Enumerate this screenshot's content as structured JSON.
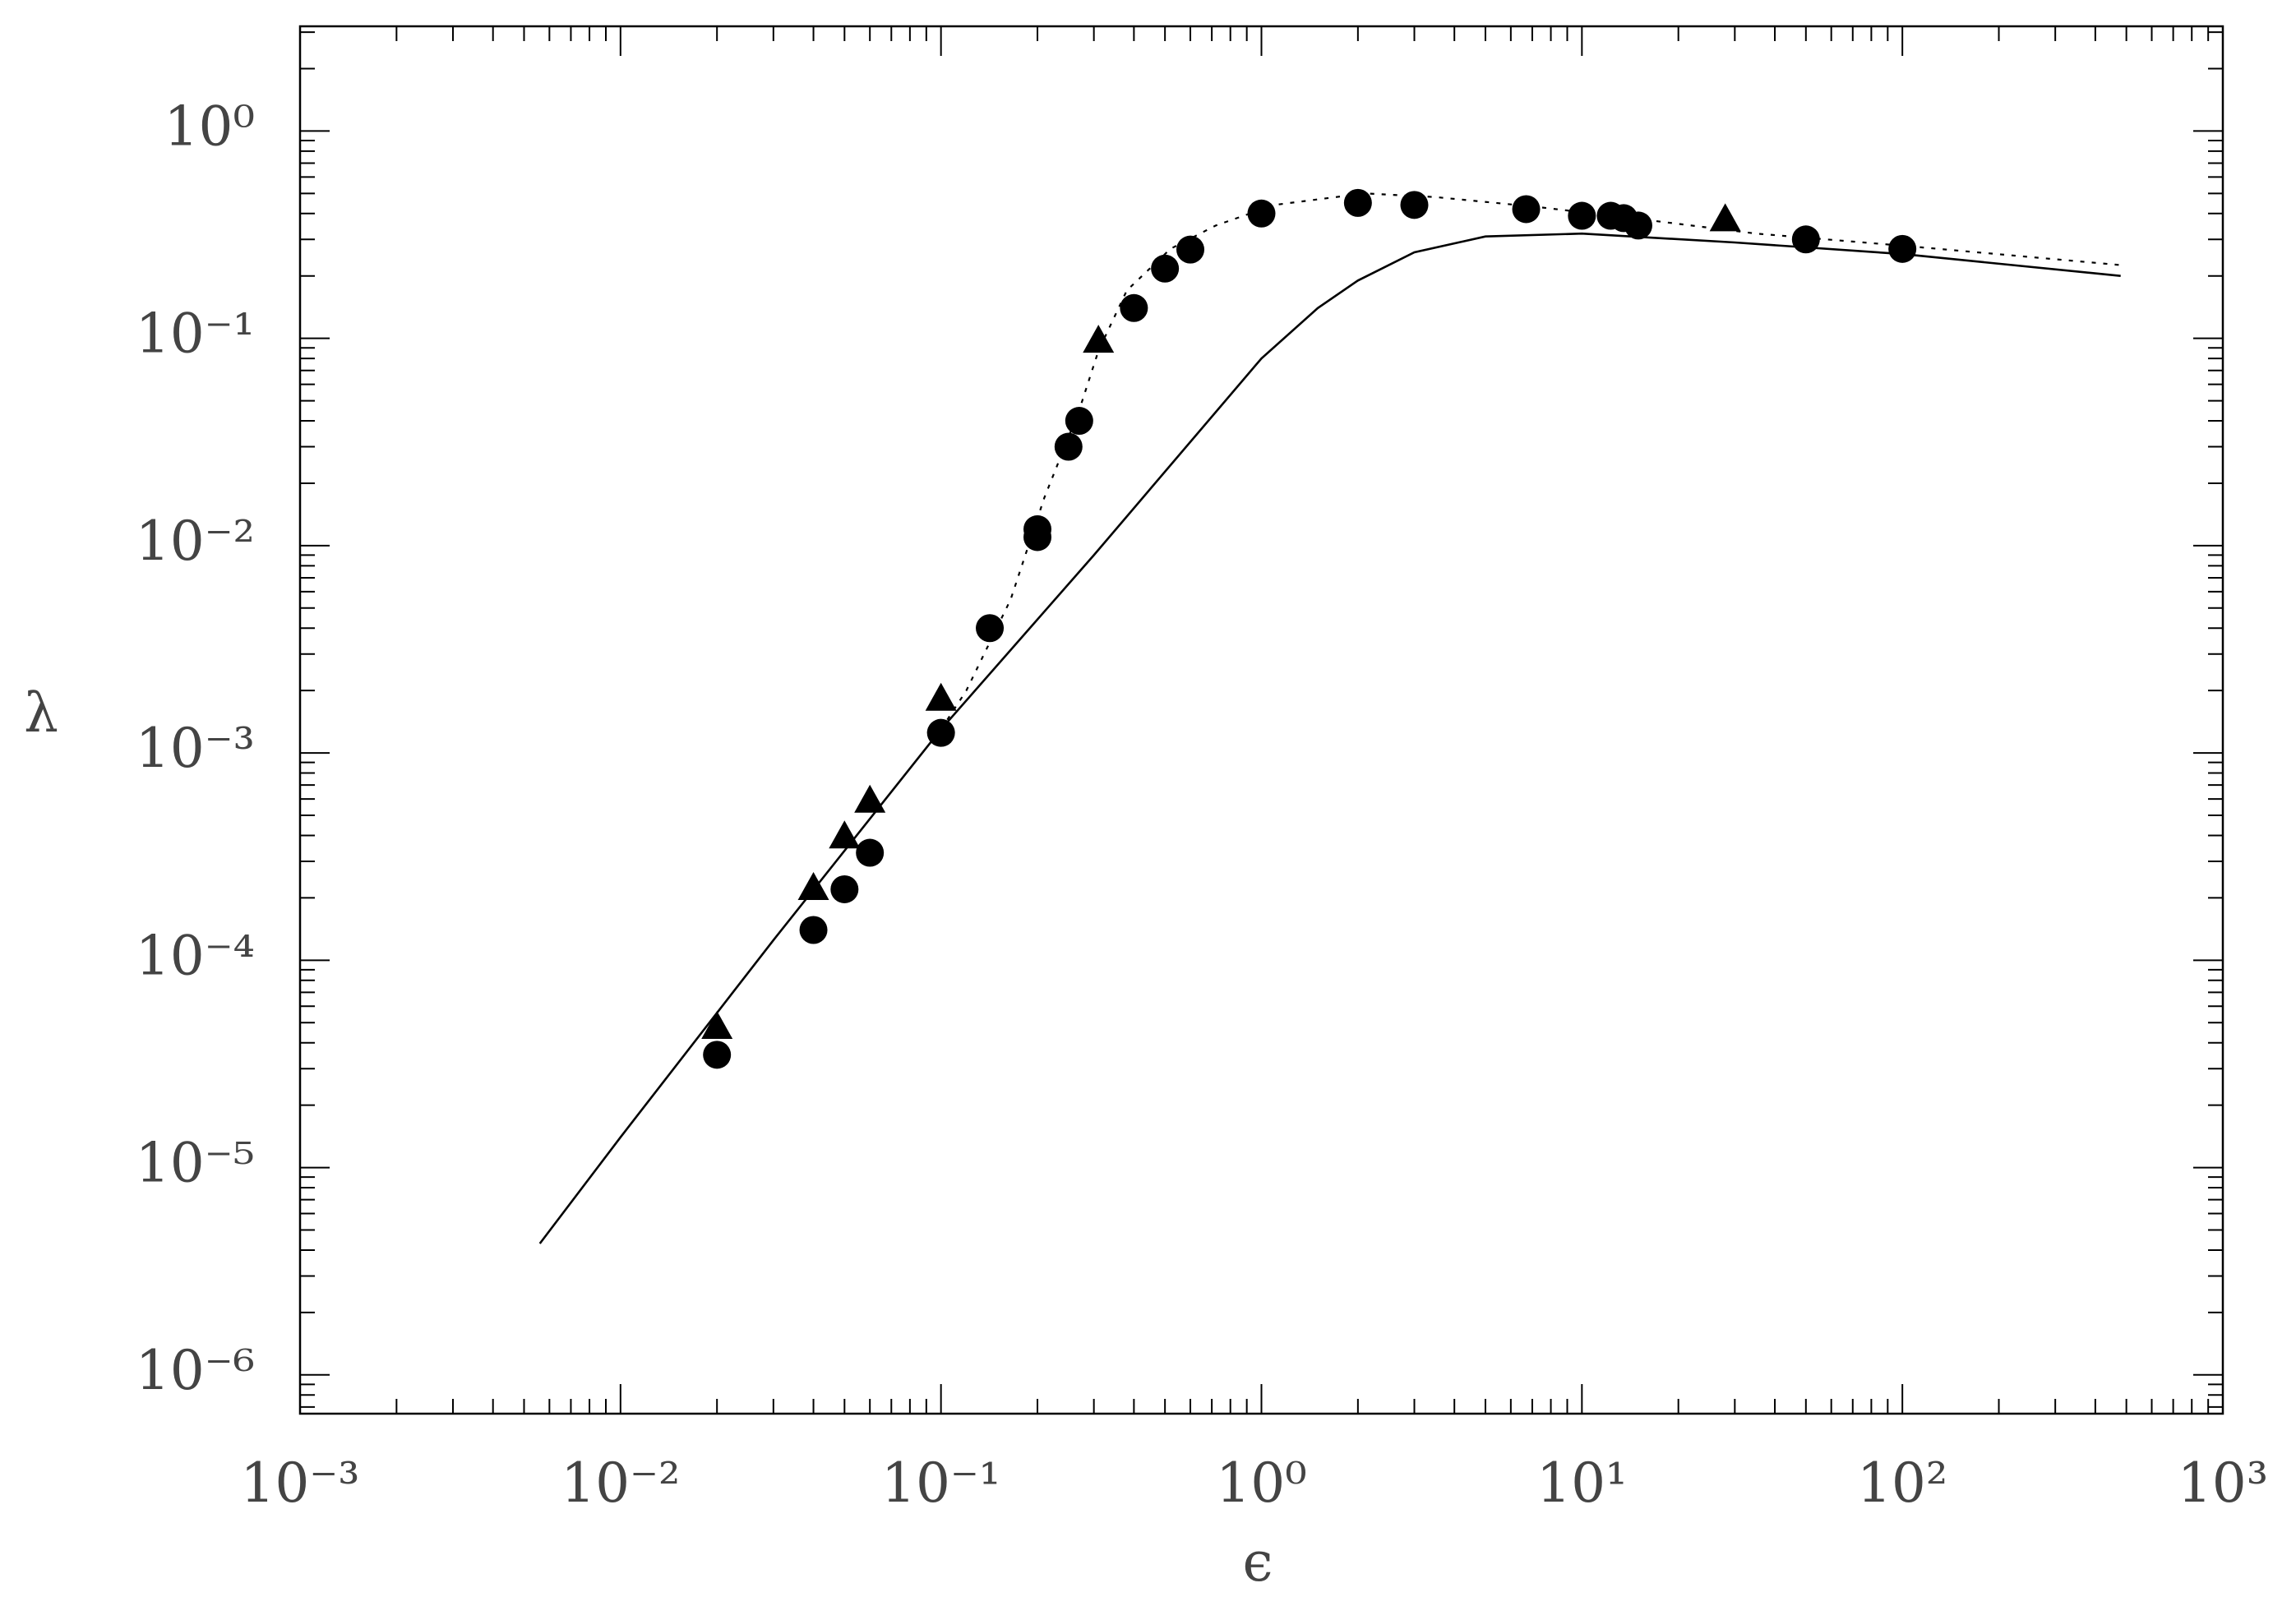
{
  "chart_data": {
    "type": "scatter",
    "xlabel": "ϵ",
    "ylabel": "λ",
    "xscale": "log",
    "yscale": "log",
    "grid": false,
    "minor_ticks": true,
    "xlim": [
      0.001,
      1000
    ],
    "ylim": [
      6.5e-07,
      3.2
    ],
    "xticks": [
      {
        "value": 0.001,
        "label": "10⁻³"
      },
      {
        "value": 0.01,
        "label": "10⁻²"
      },
      {
        "value": 0.1,
        "label": "10⁻¹"
      },
      {
        "value": 1,
        "label": "10⁰"
      },
      {
        "value": 10,
        "label": "10¹"
      },
      {
        "value": 100,
        "label": "10²"
      },
      {
        "value": 1000,
        "label": "10³"
      }
    ],
    "yticks": [
      {
        "value": 1e-06,
        "label": "10⁻⁶"
      },
      {
        "value": 1e-05,
        "label": "10⁻⁵"
      },
      {
        "value": 0.0001,
        "label": "10⁻⁴"
      },
      {
        "value": 0.001,
        "label": "10⁻³"
      },
      {
        "value": 0.01,
        "label": "10⁻²"
      },
      {
        "value": 0.1,
        "label": "10⁻¹"
      },
      {
        "value": 1,
        "label": "10⁰"
      }
    ],
    "series": [
      {
        "marker": "circle",
        "color": "#000000",
        "x": [
          0.02,
          0.04,
          0.05,
          0.06,
          0.1,
          0.142,
          0.2,
          0.2,
          0.25,
          0.27,
          0.4,
          0.5,
          0.6,
          1.0,
          2.0,
          3.0,
          6.7,
          10,
          12.3,
          13.5,
          15,
          50,
          100
        ],
        "values": [
          3.5e-05,
          0.00014,
          0.00022,
          0.00033,
          0.00125,
          0.004,
          0.012,
          0.011,
          0.03,
          0.04,
          0.14,
          0.217,
          0.268,
          0.4,
          0.45,
          0.44,
          0.42,
          0.39,
          0.39,
          0.38,
          0.35,
          0.3,
          0.27
        ]
      },
      {
        "marker": "triangle",
        "color": "#000000",
        "x": [
          0.02,
          0.04,
          0.05,
          0.06,
          0.1,
          0.31,
          28
        ],
        "values": [
          4.7e-05,
          0.00022,
          0.00039,
          0.00058,
          0.0018,
          0.096,
          0.37
        ]
      },
      {
        "line": "solid",
        "color": "#000000",
        "x": [
          0.0056,
          0.01,
          0.03,
          0.1,
          0.3,
          1,
          1.5,
          2,
          3,
          5,
          10,
          30,
          100,
          480
        ],
        "values": [
          4.3e-06,
          1.4e-05,
          0.000125,
          0.0013,
          0.009,
          0.08,
          0.14,
          0.19,
          0.26,
          0.31,
          0.32,
          0.29,
          0.255,
          0.2
        ]
      },
      {
        "line": "dotted",
        "color": "#000000",
        "x": [
          0.1,
          0.12,
          0.165,
          0.21,
          0.27,
          0.31,
          0.38,
          0.52,
          0.72,
          1.1,
          2.1,
          3.5,
          7.3,
          15,
          35,
          100,
          490
        ],
        "values": [
          0.0013,
          0.002,
          0.0055,
          0.017,
          0.045,
          0.087,
          0.17,
          0.27,
          0.35,
          0.44,
          0.5,
          0.48,
          0.43,
          0.377,
          0.32,
          0.28,
          0.225
        ]
      }
    ]
  }
}
